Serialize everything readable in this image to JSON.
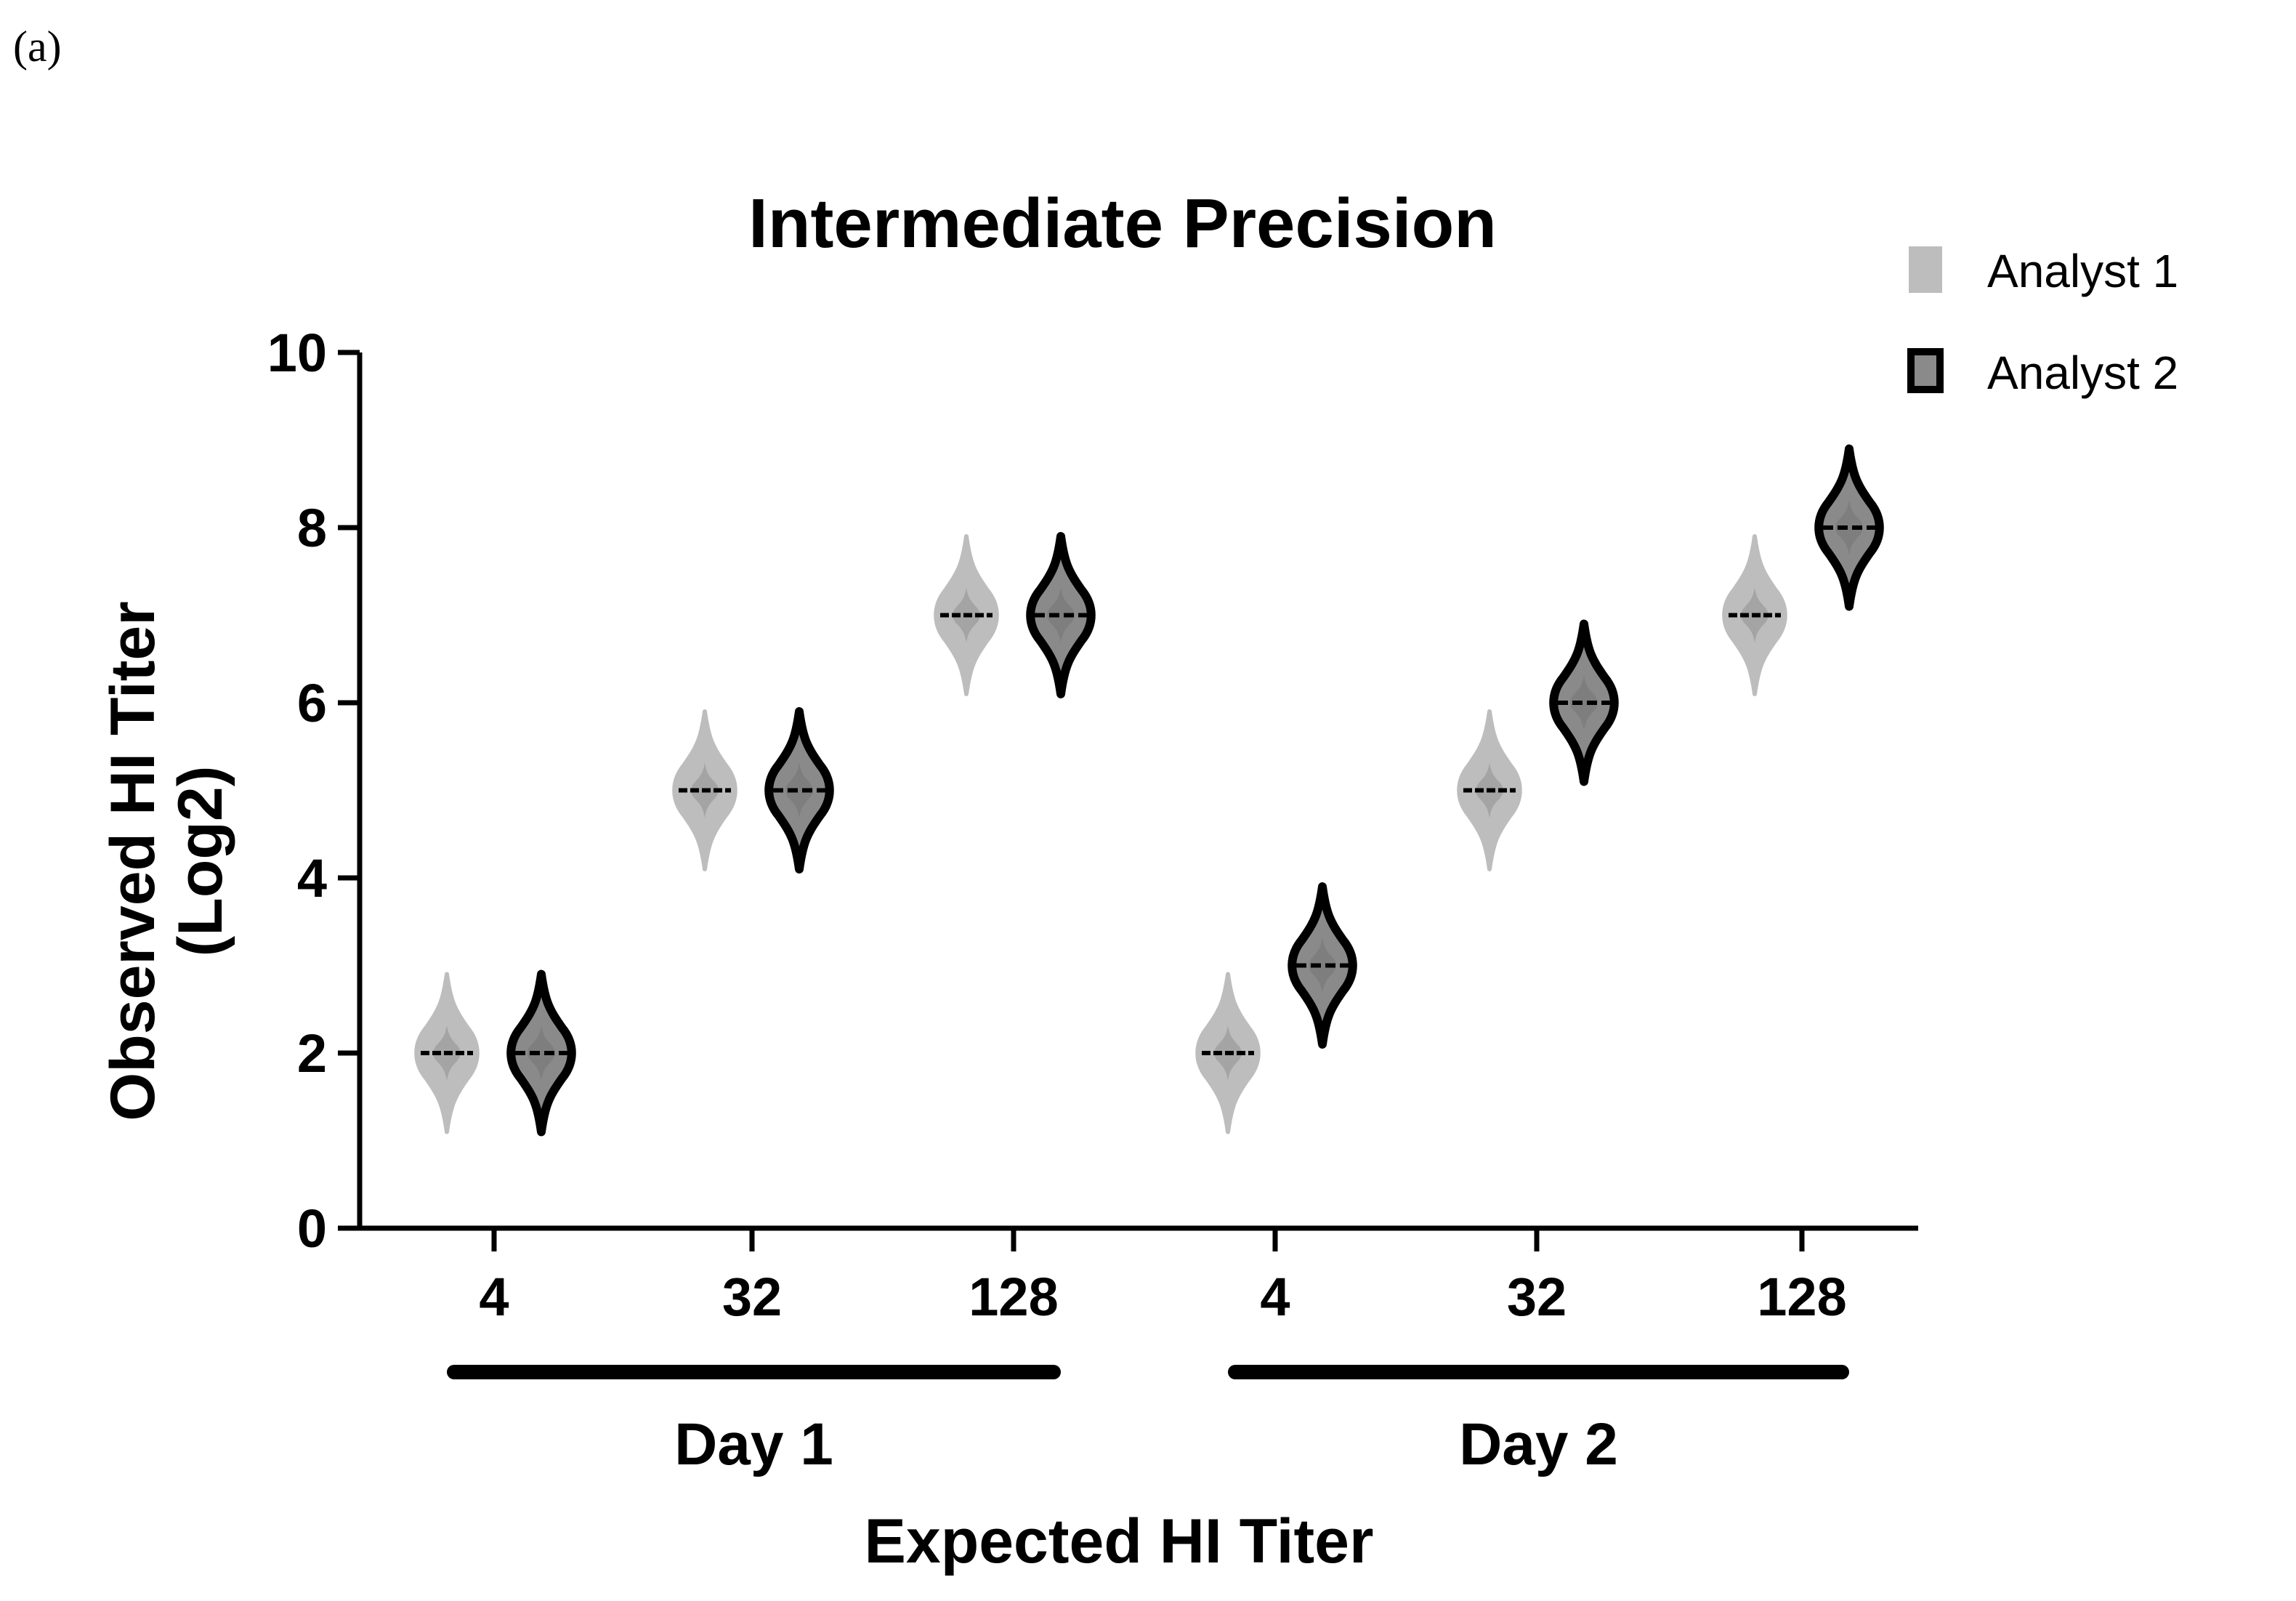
{
  "panel_label": "(a)",
  "chart_data": {
    "type": "violin",
    "title": "Intermediate Precision",
    "ylabel_line1": "Observed HI Titer",
    "ylabel_line2": "(Log2)",
    "xlabel": "Expected HI Titer",
    "ylim": [
      0,
      10
    ],
    "yticks": [
      0,
      2,
      4,
      6,
      8,
      10
    ],
    "groups": [
      {
        "label": "Day 1",
        "categories": [
          "4",
          "32",
          "128"
        ]
      },
      {
        "label": "Day 2",
        "categories": [
          "4",
          "32",
          "128"
        ]
      }
    ],
    "series": [
      {
        "name": "Analyst 1",
        "fill": "#bdbdbd",
        "inner": "#9e9e9e",
        "stroke": "#bdbdbd",
        "values": [
          [
            2,
            5,
            7
          ],
          [
            2,
            5,
            7
          ]
        ]
      },
      {
        "name": "Analyst 2",
        "fill": "#8a8a8a",
        "inner": "#7a7a7a",
        "stroke": "#000000",
        "values": [
          [
            2,
            5,
            7
          ],
          [
            3,
            6,
            8
          ]
        ]
      }
    ],
    "violin_half_range": 0.9,
    "legend_position": "top-right"
  }
}
